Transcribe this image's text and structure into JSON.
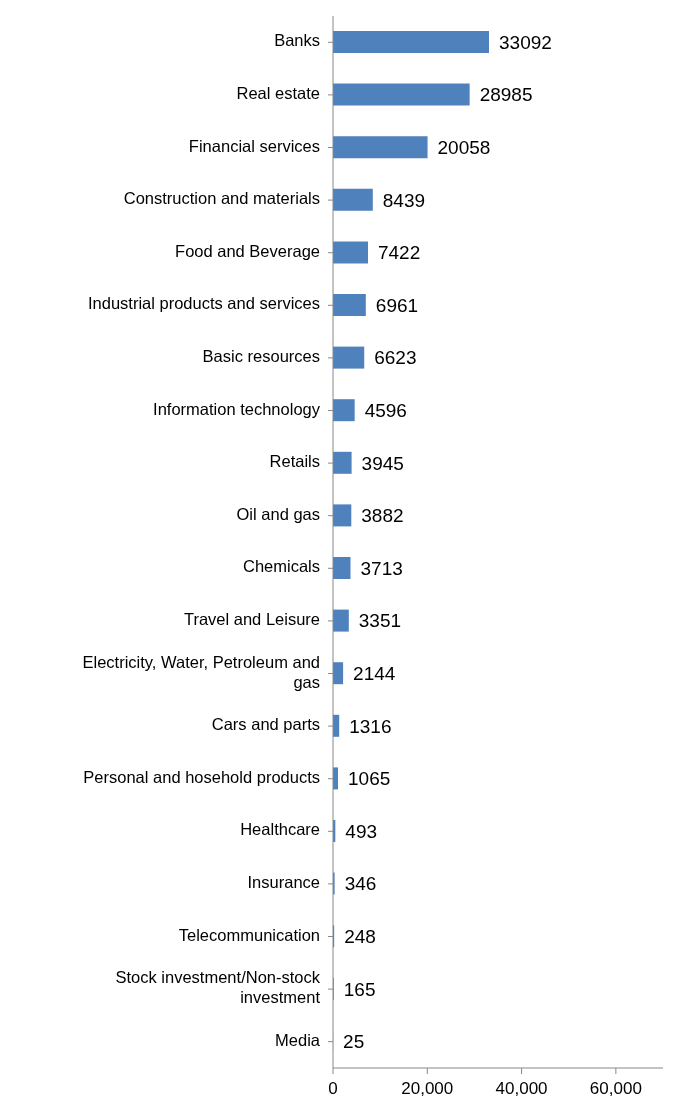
{
  "chart_data": {
    "type": "bar",
    "orientation": "horizontal",
    "categories": [
      "Banks",
      "Real estate",
      "Financial services",
      "Construction and materials",
      "Food and Beverage",
      "Industrial products and services",
      "Basic resources",
      "Information technology",
      "Retails",
      "Oil and gas",
      "Chemicals",
      "Travel and Leisure",
      "Electricity, Water, Petroleum and gas",
      "Cars and parts",
      "Personal and hosehold products",
      "Healthcare",
      "Insurance",
      "Telecommunication",
      "Stock investment/Non-stock investment",
      "Media"
    ],
    "values": [
      33092,
      28985,
      20058,
      8439,
      7422,
      6961,
      6623,
      4596,
      3945,
      3882,
      3713,
      3351,
      2144,
      1316,
      1065,
      493,
      346,
      248,
      165,
      25
    ],
    "color": "#4f81bd",
    "data_labels": true,
    "xlim": [
      0,
      70000
    ],
    "xticks": [
      0,
      {
        "value": 20000,
        "label": "20,000"
      },
      {
        "value": 40000,
        "label": "40,000"
      },
      {
        "value": 60000,
        "label": "60,000"
      }
    ],
    "grid": false,
    "legend": false
  }
}
